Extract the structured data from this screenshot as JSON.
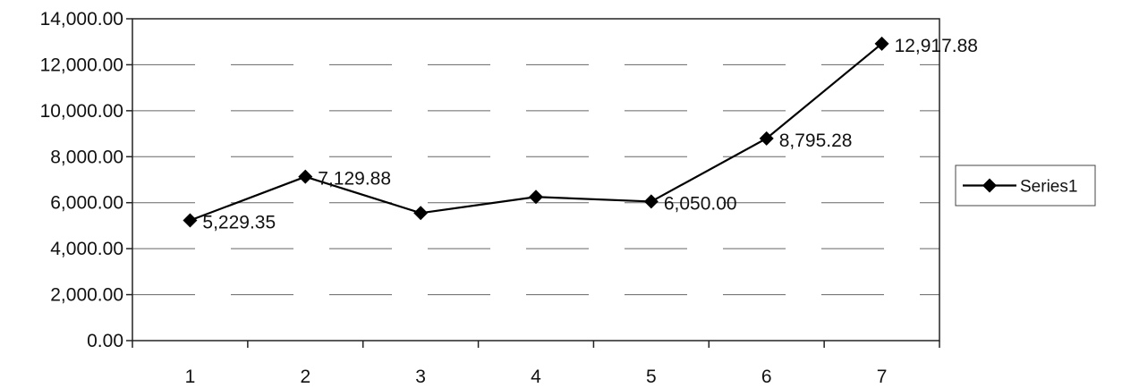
{
  "chart_data": {
    "type": "line",
    "title": "",
    "xlabel": "",
    "ylabel": "",
    "categories": [
      "1",
      "2",
      "3",
      "4",
      "5",
      "6",
      "7"
    ],
    "series": [
      {
        "name": "Series1",
        "values": [
          5229.35,
          7129.88,
          5550,
          6250,
          6050.0,
          8795.28,
          12917.88
        ],
        "labels": [
          "5,229.35",
          "7,129.88",
          "",
          "",
          "6,050.00",
          "8,795.28",
          "12,917.88"
        ],
        "color": "#000000",
        "marker": "diamond"
      }
    ],
    "ylim": [
      0,
      14000
    ],
    "yticks": [
      "0.00",
      "2,000.00",
      "4,000.00",
      "6,000.00",
      "8,000.00",
      "10,000.00",
      "12,000.00",
      "14,000.00"
    ],
    "grid": true,
    "legend": "right"
  }
}
